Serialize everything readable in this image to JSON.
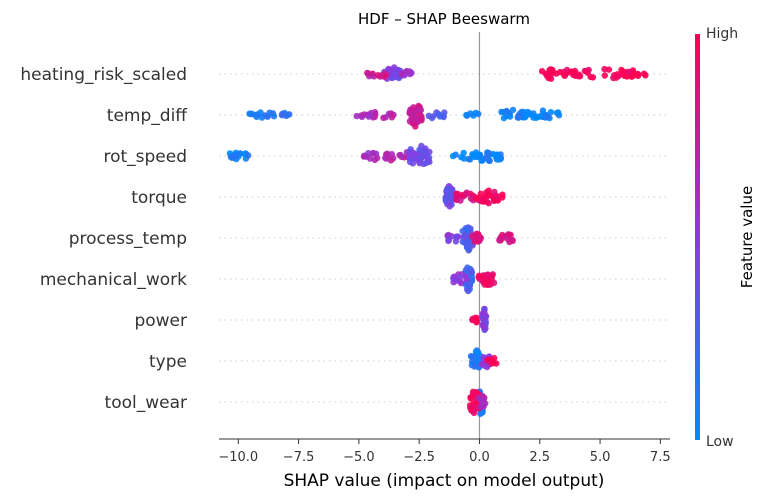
{
  "chart_data": {
    "type": "scatter",
    "subtype": "shap-beeswarm",
    "title": "HDF – SHAP Beeswarm",
    "xlabel": "SHAP value (impact on model output)",
    "xlim": [
      -10.8,
      7.9
    ],
    "x_ticks": [
      -10.0,
      -7.5,
      -5.0,
      -2.5,
      0.0,
      2.5,
      5.0,
      7.5
    ],
    "x_tick_labels": [
      "−10.0",
      "−7.5",
      "−5.0",
      "−2.5",
      "0.0",
      "2.5",
      "5.0",
      "7.5"
    ],
    "zero_line": 0,
    "colorbar": {
      "label": "Feature value",
      "high_label": "High",
      "low_label": "Low",
      "low_color": "#008bfb",
      "high_color": "#ff0052"
    },
    "features": [
      {
        "name": "heating_risk_scaled",
        "clusters": [
          {
            "center": -3.6,
            "width": 0.35,
            "count": 30,
            "spread": 0.55,
            "value": 0.45
          },
          {
            "center": -4.2,
            "width": 0.45,
            "count": 14,
            "spread": 0.25,
            "value": 0.75
          },
          {
            "center": -3.0,
            "width": 0.3,
            "count": 8,
            "spread": 0.25,
            "value": 0.55
          },
          {
            "center": 3.2,
            "width": 0.8,
            "count": 24,
            "spread": 0.35,
            "value": 0.97
          },
          {
            "center": 5.2,
            "width": 1.4,
            "count": 34,
            "spread": 0.35,
            "value": 0.98
          },
          {
            "center": 6.4,
            "width": 0.5,
            "count": 10,
            "spread": 0.25,
            "value": 0.98
          }
        ]
      },
      {
        "name": "temp_diff",
        "clusters": [
          {
            "center": -9.0,
            "width": 0.55,
            "count": 14,
            "spread": 0.2,
            "value": 0.15
          },
          {
            "center": -8.0,
            "width": 0.2,
            "count": 6,
            "spread": 0.2,
            "value": 0.15
          },
          {
            "center": -4.3,
            "width": 0.8,
            "count": 18,
            "spread": 0.25,
            "value": 0.65
          },
          {
            "center": -2.65,
            "width": 0.25,
            "count": 40,
            "spread": 0.75,
            "value": 0.75
          },
          {
            "center": -1.8,
            "width": 0.4,
            "count": 10,
            "spread": 0.25,
            "value": 0.25
          },
          {
            "center": -0.3,
            "width": 0.3,
            "count": 6,
            "spread": 0.2,
            "value": 0.05
          },
          {
            "center": 1.4,
            "width": 0.5,
            "count": 22,
            "spread": 0.35,
            "value": 0.05
          },
          {
            "center": 2.6,
            "width": 0.8,
            "count": 24,
            "spread": 0.3,
            "value": 0.05
          }
        ]
      },
      {
        "name": "rot_speed",
        "clusters": [
          {
            "center": -9.9,
            "width": 0.45,
            "count": 16,
            "spread": 0.3,
            "value": 0.05
          },
          {
            "center": -4.5,
            "width": 0.3,
            "count": 10,
            "spread": 0.35,
            "value": 0.6
          },
          {
            "center": -3.4,
            "width": 0.55,
            "count": 14,
            "spread": 0.35,
            "value": 0.7
          },
          {
            "center": -2.5,
            "width": 0.45,
            "count": 40,
            "spread": 0.7,
            "value": 0.4
          },
          {
            "center": -0.5,
            "width": 0.6,
            "count": 14,
            "spread": 0.25,
            "value": 0.05
          },
          {
            "center": 0.35,
            "width": 0.6,
            "count": 30,
            "spread": 0.4,
            "value": 0.05
          }
        ]
      },
      {
        "name": "torque",
        "clusters": [
          {
            "center": -1.25,
            "width": 0.15,
            "count": 36,
            "spread": 0.75,
            "value": 0.4
          },
          {
            "center": -0.6,
            "width": 0.5,
            "count": 20,
            "spread": 0.3,
            "value": 0.85
          },
          {
            "center": 0.4,
            "width": 0.55,
            "count": 34,
            "spread": 0.4,
            "value": 0.95
          }
        ]
      },
      {
        "name": "process_temp",
        "clusters": [
          {
            "center": -0.45,
            "width": 0.25,
            "count": 34,
            "spread": 0.8,
            "value": 0.3
          },
          {
            "center": -1.1,
            "width": 0.25,
            "count": 12,
            "spread": 0.35,
            "value": 0.5
          },
          {
            "center": -0.15,
            "width": 0.2,
            "count": 14,
            "spread": 0.3,
            "value": 0.85
          },
          {
            "center": 1.1,
            "width": 0.3,
            "count": 14,
            "spread": 0.35,
            "value": 0.82
          }
        ]
      },
      {
        "name": "mechanical_work",
        "clusters": [
          {
            "center": -0.45,
            "width": 0.15,
            "count": 28,
            "spread": 0.85,
            "value": 0.25
          },
          {
            "center": -0.8,
            "width": 0.3,
            "count": 12,
            "spread": 0.35,
            "value": 0.5
          },
          {
            "center": 0.3,
            "width": 0.35,
            "count": 24,
            "spread": 0.45,
            "value": 0.92
          }
        ]
      },
      {
        "name": "power",
        "clusters": [
          {
            "center": -0.2,
            "width": 0.1,
            "count": 10,
            "spread": 0.25,
            "value": 0.96
          },
          {
            "center": 0.2,
            "width": 0.08,
            "count": 26,
            "spread": 0.75,
            "value": 0.45
          }
        ]
      },
      {
        "name": "type",
        "clusters": [
          {
            "center": -0.15,
            "width": 0.2,
            "count": 30,
            "spread": 0.75,
            "value": 0.1
          },
          {
            "center": 0.3,
            "width": 0.2,
            "count": 16,
            "spread": 0.4,
            "value": 0.5
          },
          {
            "center": 0.55,
            "width": 0.25,
            "count": 8,
            "spread": 0.25,
            "value": 0.95
          }
        ]
      },
      {
        "name": "tool_wear",
        "clusters": [
          {
            "center": 0.05,
            "width": 0.15,
            "count": 22,
            "spread": 0.85,
            "value": 0.15
          },
          {
            "center": -0.2,
            "width": 0.2,
            "count": 34,
            "spread": 0.8,
            "value": 0.95
          },
          {
            "center": 0.1,
            "width": 0.15,
            "count": 14,
            "spread": 0.45,
            "value": 0.6
          }
        ]
      }
    ]
  }
}
